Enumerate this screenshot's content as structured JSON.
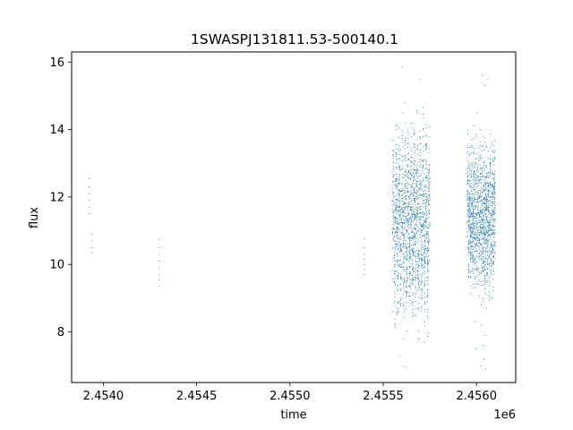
{
  "chart_data": {
    "type": "scatter",
    "title": "1SWASPJ131811.53-500140.1",
    "xlabel": "time",
    "ylabel": "flux",
    "x_offset_label": "1e6",
    "xlim": [
      2453830,
      2456210
    ],
    "ylim": [
      6.5,
      16.3
    ],
    "grid": false,
    "marker_color": "#1f77b4",
    "xticks": [
      2454000,
      2454500,
      2455000,
      2455500,
      2456000
    ],
    "xtick_labels": [
      "2.4540",
      "2.4545",
      "2.4550",
      "2.4555",
      "2.4560"
    ],
    "yticks": [
      8,
      10,
      12,
      14,
      16
    ],
    "ytick_labels": [
      "8",
      "10",
      "12",
      "14",
      "16"
    ],
    "series": [
      {
        "points": [
          [
            2453925,
            12.55
          ],
          [
            2453925,
            12.1
          ],
          [
            2453926,
            11.9
          ],
          [
            2453926,
            11.7
          ],
          [
            2453927,
            11.5
          ],
          [
            2453924,
            12.3
          ],
          [
            2453939,
            10.9
          ],
          [
            2453940,
            10.7
          ],
          [
            2453940,
            10.5
          ],
          [
            2453941,
            10.35
          ],
          [
            2454300,
            10.75
          ],
          [
            2454300,
            10.5
          ],
          [
            2454300,
            10.3
          ],
          [
            2454300,
            10.1
          ],
          [
            2454300,
            9.9
          ],
          [
            2454300,
            9.7
          ],
          [
            2454300,
            9.55
          ],
          [
            2454300,
            9.35
          ],
          [
            2455400,
            10.75
          ],
          [
            2455400,
            10.5
          ],
          [
            2455400,
            10.3
          ],
          [
            2455400,
            10.15
          ],
          [
            2455400,
            10.0
          ],
          [
            2455400,
            9.85
          ],
          [
            2455400,
            9.7
          ],
          [
            2455560,
            10.8
          ],
          [
            2455560,
            10.2
          ],
          [
            2455562,
            9.7
          ],
          [
            2455565,
            12.5
          ],
          [
            2455568,
            11.6
          ],
          [
            2455570,
            13.2
          ],
          [
            2455572,
            9.3
          ],
          [
            2455575,
            12.1
          ],
          [
            2455578,
            10.6
          ],
          [
            2455580,
            11.9
          ],
          [
            2455582,
            13.0
          ],
          [
            2455584,
            8.9
          ],
          [
            2455586,
            12.4
          ],
          [
            2455588,
            10.0
          ],
          [
            2455590,
            11.4
          ],
          [
            2455592,
            13.4
          ],
          [
            2455594,
            9.4
          ],
          [
            2455596,
            12.8
          ],
          [
            2455598,
            10.4
          ],
          [
            2455600,
            15.85
          ],
          [
            2455600,
            11.1
          ],
          [
            2455602,
            14.5
          ],
          [
            2455604,
            9.0
          ],
          [
            2455606,
            12.2
          ],
          [
            2455608,
            10.9
          ],
          [
            2455610,
            13.1
          ],
          [
            2455612,
            8.6
          ],
          [
            2455614,
            11.8
          ],
          [
            2455616,
            10.2
          ],
          [
            2455618,
            13.6
          ],
          [
            2455620,
            14.2
          ],
          [
            2455622,
            9.2
          ],
          [
            2455624,
            12.6
          ],
          [
            2455626,
            11.0
          ],
          [
            2455628,
            10.5
          ],
          [
            2455630,
            12.9
          ],
          [
            2455632,
            9.6
          ],
          [
            2455634,
            11.5
          ],
          [
            2455636,
            13.3
          ],
          [
            2455638,
            10.1
          ],
          [
            2455640,
            12.0
          ],
          [
            2455642,
            9.9
          ],
          [
            2455644,
            11.7
          ],
          [
            2455646,
            12.7
          ],
          [
            2455648,
            10.7
          ],
          [
            2455650,
            11.3
          ],
          [
            2455652,
            9.5
          ],
          [
            2455654,
            12.3
          ],
          [
            2455656,
            10.8
          ],
          [
            2455658,
            13.0
          ],
          [
            2455660,
            11.6
          ],
          [
            2455662,
            10.3
          ],
          [
            2455664,
            12.1
          ],
          [
            2455666,
            9.8
          ],
          [
            2455668,
            11.9
          ],
          [
            2455670,
            12.5
          ],
          [
            2455672,
            10.6
          ],
          [
            2455674,
            11.2
          ],
          [
            2455676,
            12.8
          ],
          [
            2455678,
            10.0
          ],
          [
            2455680,
            11.4
          ],
          [
            2455682,
            12.2
          ],
          [
            2455684,
            9.7
          ],
          [
            2455590,
            7.3
          ],
          [
            2455605,
            7.0
          ],
          [
            2455620,
            6.95
          ],
          [
            2455575,
            8.5
          ],
          [
            2455610,
            7.8
          ],
          [
            2455700,
            15.5
          ],
          [
            2455686,
            11.1
          ],
          [
            2455688,
            12.6
          ],
          [
            2455690,
            10.4
          ],
          [
            2455692,
            11.8
          ],
          [
            2455694,
            9.3
          ],
          [
            2455696,
            12.9
          ],
          [
            2455698,
            10.9
          ],
          [
            2455700,
            11.5
          ],
          [
            2455702,
            12.4
          ],
          [
            2455704,
            10.2
          ],
          [
            2455706,
            13.1
          ],
          [
            2455708,
            11.0
          ],
          [
            2455710,
            10.6
          ],
          [
            2455712,
            12.0
          ],
          [
            2455714,
            9.9
          ],
          [
            2455716,
            11.7
          ],
          [
            2455718,
            12.7
          ],
          [
            2455720,
            10.5
          ],
          [
            2455722,
            11.3
          ],
          [
            2455724,
            12.3
          ],
          [
            2455726,
            10.8
          ],
          [
            2455728,
            11.6
          ],
          [
            2455730,
            12.2
          ],
          [
            2455732,
            10.3
          ],
          [
            2455734,
            11.9
          ],
          [
            2455736,
            12.5
          ],
          [
            2455738,
            10.1
          ],
          [
            2455740,
            11.2
          ],
          [
            2455742,
            12.8
          ],
          [
            2455744,
            10.7
          ],
          [
            2455746,
            11.4
          ],
          [
            2455955,
            12.9
          ],
          [
            2455957,
            11.8
          ],
          [
            2455959,
            12.5
          ],
          [
            2455961,
            10.6
          ],
          [
            2455963,
            13.0
          ],
          [
            2455965,
            11.2
          ],
          [
            2455967,
            12.3
          ],
          [
            2455969,
            10.9
          ],
          [
            2455971,
            12.7
          ],
          [
            2455973,
            11.5
          ],
          [
            2455975,
            10.2
          ],
          [
            2455977,
            12.1
          ],
          [
            2455979,
            11.0
          ],
          [
            2455981,
            13.3
          ],
          [
            2455983,
            10.7
          ],
          [
            2455985,
            12.6
          ],
          [
            2455987,
            11.3
          ],
          [
            2455989,
            10.0
          ],
          [
            2455991,
            12.9
          ],
          [
            2455993,
            11.7
          ],
          [
            2455995,
            13.8
          ],
          [
            2455997,
            10.4
          ],
          [
            2455999,
            12.4
          ],
          [
            2456001,
            11.1
          ],
          [
            2456003,
            14.5
          ],
          [
            2456005,
            10.8
          ],
          [
            2456007,
            12.2
          ],
          [
            2456009,
            11.6
          ],
          [
            2456011,
            13.1
          ],
          [
            2456013,
            10.3
          ],
          [
            2456015,
            12.0
          ],
          [
            2456017,
            11.4
          ],
          [
            2456019,
            14.0
          ],
          [
            2456021,
            10.6
          ],
          [
            2456023,
            12.7
          ],
          [
            2456025,
            11.9
          ],
          [
            2456027,
            9.9
          ],
          [
            2456029,
            12.5
          ],
          [
            2456031,
            11.2
          ],
          [
            2456033,
            13.5
          ],
          [
            2456035,
            10.5
          ],
          [
            2456037,
            12.3
          ],
          [
            2456039,
            11.8
          ],
          [
            2456041,
            10.1
          ],
          [
            2456043,
            12.8
          ],
          [
            2456045,
            11.0
          ],
          [
            2456047,
            9.6
          ],
          [
            2456049,
            12.1
          ],
          [
            2456051,
            11.5
          ],
          [
            2456053,
            10.4
          ],
          [
            2456055,
            12.6
          ],
          [
            2456057,
            11.3
          ],
          [
            2456059,
            10.0
          ],
          [
            2456061,
            12.4
          ],
          [
            2456063,
            11.7
          ],
          [
            2456065,
            10.7
          ],
          [
            2456067,
            12.2
          ],
          [
            2456069,
            11.1
          ],
          [
            2456071,
            10.3
          ],
          [
            2456073,
            11.9
          ],
          [
            2456075,
            11.4
          ],
          [
            2456077,
            10.8
          ],
          [
            2456079,
            12.0
          ],
          [
            2456081,
            11.6
          ],
          [
            2456083,
            10.5
          ],
          [
            2456085,
            12.3
          ],
          [
            2456087,
            11.0
          ],
          [
            2456089,
            10.9
          ],
          [
            2456091,
            11.8
          ],
          [
            2456093,
            12.5
          ],
          [
            2456095,
            10.6
          ],
          [
            2456097,
            11.3
          ],
          [
            2456099,
            12.1
          ],
          [
            2456030,
            15.6
          ],
          [
            2456045,
            15.3
          ],
          [
            2456060,
            15.5
          ],
          [
            2456025,
            8.2
          ],
          [
            2456035,
            7.6
          ],
          [
            2456040,
            7.2
          ],
          [
            2456050,
            6.9
          ],
          [
            2456020,
            7.0
          ],
          [
            2456048,
            7.9
          ],
          [
            2456055,
            8.7
          ],
          [
            2455990,
            8.3
          ],
          [
            2456000,
            7.5
          ]
        ]
      }
    ],
    "bands": [
      {
        "x": [
          2455550,
          2455750
        ],
        "y_center": 11.2,
        "y_spread": 2.0,
        "oscillation_days": 16,
        "amplitude": 1.2,
        "count": 1500,
        "seed": 11
      },
      {
        "x": [
          2455950,
          2456100
        ],
        "y_center": 11.4,
        "y_spread": 1.4,
        "oscillation_days": 11,
        "amplitude": 1.0,
        "count": 1300,
        "seed": 29
      }
    ]
  }
}
